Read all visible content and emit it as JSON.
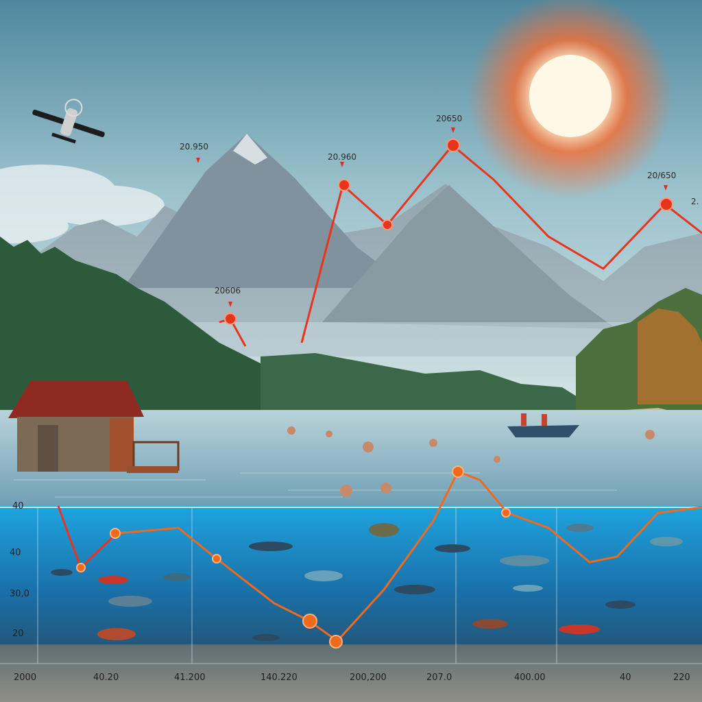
{
  "scene": {
    "subject": "lake-mountain-infographic",
    "colors": {
      "sky_top": "#5f95aa",
      "sky_mid": "#a7c7cf",
      "sun": "#fff6dc",
      "sun_glow": "#ff6a2c",
      "mountain": "#7f95a3",
      "forest": "#2f5a3b",
      "lake_surface": "#8fb4c4",
      "underwater": "#1b7fbf",
      "upper_line": "#e8341f",
      "lower_line": "#f06a1e",
      "sand": "#d2b68f",
      "cabin": "#8d4b2d"
    }
  },
  "chart_data": [
    {
      "type": "line",
      "name_label": "upper-temperature-line",
      "annotations": [
        "20.950",
        "20.960",
        "20650",
        "20606",
        "20/650",
        "2."
      ],
      "series": [
        {
          "values": [
            0.62,
            0.48,
            0.88,
            0.72,
            0.95,
            0.58,
            0.84,
            0.91
          ]
        }
      ]
    },
    {
      "type": "line",
      "name_label": "underwater-depth-line",
      "y_tick_labels": [
        "40",
        "40",
        "30,0",
        "20"
      ],
      "x_tick_labels": [
        "2000",
        "40.20",
        "41.200",
        "140.220",
        "200,200",
        "207.0",
        "400.00",
        "40",
        "220"
      ],
      "series": [
        {
          "values": [
            0.95,
            0.32,
            0.7,
            0.74,
            0.62,
            0.25,
            0.12,
            0.46,
            0.88,
            0.85,
            0.74,
            0.36,
            0.55,
            0.98
          ]
        }
      ]
    }
  ]
}
